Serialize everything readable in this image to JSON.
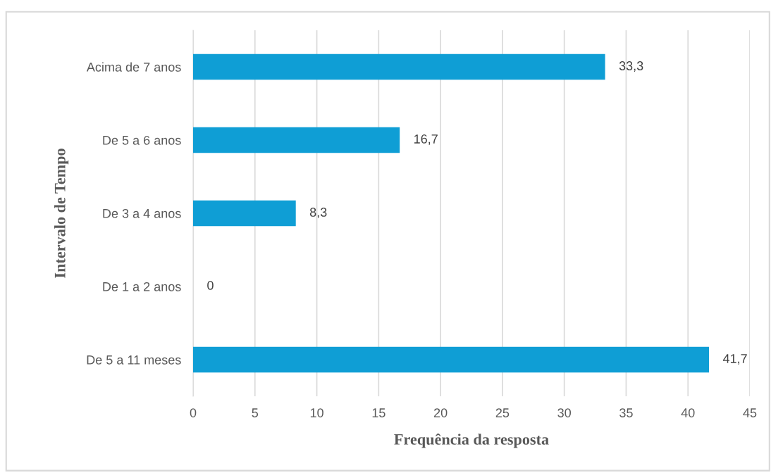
{
  "chart_data": {
    "type": "bar",
    "orientation": "horizontal",
    "xlabel": "Frequência da resposta",
    "ylabel": "Intervalo de Tempo",
    "categories": [
      "Acima de 7 anos",
      "De 5 a 6 anos",
      "De 3 a 4 anos",
      "De 1 a 2 anos",
      "De 5 a 11 meses"
    ],
    "values": [
      33.3,
      16.7,
      8.3,
      0,
      41.7
    ],
    "value_labels": [
      "33,3",
      "16,7",
      "8,3",
      "0",
      "41,7"
    ],
    "color": "#0f9ed5",
    "xlim": [
      0,
      45
    ],
    "xticks": [
      0,
      5,
      10,
      15,
      20,
      25,
      30,
      35,
      40,
      45
    ],
    "grid": "x",
    "legend": false
  }
}
